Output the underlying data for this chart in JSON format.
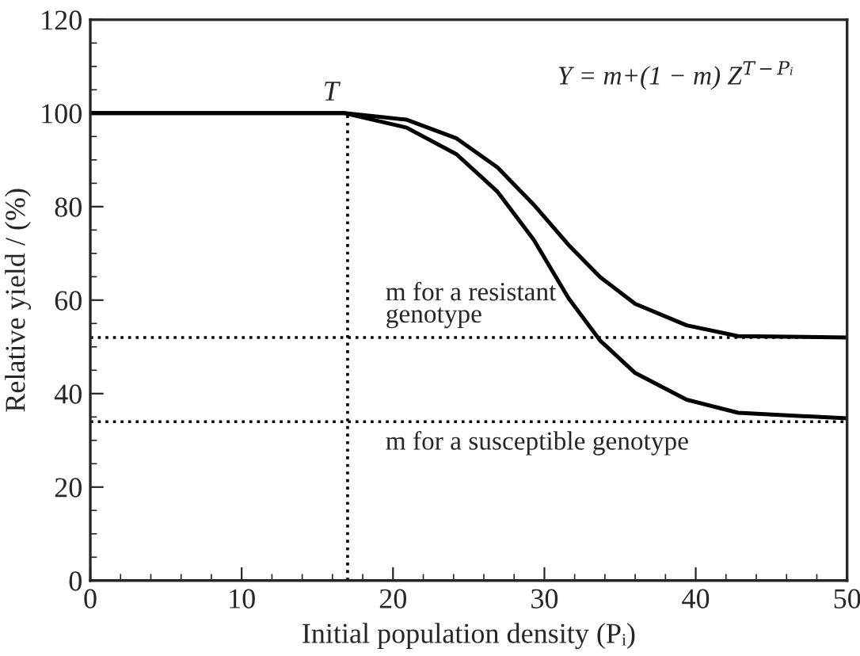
{
  "chart_data": {
    "type": "line",
    "xlabel": "Initial population density (Pᵢ)",
    "ylabel": "Relative yield / (%)",
    "series": [
      {
        "color": "#000000",
        "line_style": "solid",
        "x": [
          0,
          16.8,
          20.9,
          24.2,
          26.9,
          29.3,
          31.6,
          33.7,
          36.0,
          39.4,
          42.8,
          50
        ],
        "values": [
          100,
          100,
          98.6,
          94.6,
          88.4,
          80.4,
          71.8,
          64.9,
          59.2,
          54.6,
          52.3,
          52
        ]
      },
      {
        "color": "#000000",
        "line_style": "solid",
        "x": [
          0,
          16.8,
          20.9,
          24.2,
          26.9,
          29.3,
          31.6,
          33.7,
          36.0,
          39.4,
          42.8,
          50
        ],
        "values": [
          100,
          100,
          96.9,
          91.2,
          83.2,
          72.9,
          60.4,
          51.3,
          44.4,
          38.7,
          35.9,
          34.7
        ]
      },
      {
        "color": "#000000",
        "line_style": "dotted",
        "x": [
          17,
          17
        ],
        "values": [
          0,
          100
        ]
      }
    ],
    "ref_lines": [
      {
        "axis": "y",
        "value": 52,
        "label": "m for a resistant\ngenotype",
        "color": "#000000",
        "line_style": "dotted"
      },
      {
        "axis": "y",
        "value": 34,
        "label": "m for a susceptible genotype",
        "color": "#000000",
        "line_style": "dotted"
      }
    ],
    "annotations": [
      {
        "text": "T",
        "x": 17,
        "y": 100
      },
      "Y = m+(1 − m) Z$^{T−Pᵢ}$"
    ],
    "xlim": [
      0,
      50
    ],
    "ylim": [
      0,
      120
    ],
    "xticks": [
      0,
      10,
      20,
      30,
      40,
      50
    ],
    "yticks": [
      0,
      20,
      40,
      60,
      80,
      100,
      120
    ],
    "grid": false,
    "legend": false,
    "marker": "none"
  }
}
